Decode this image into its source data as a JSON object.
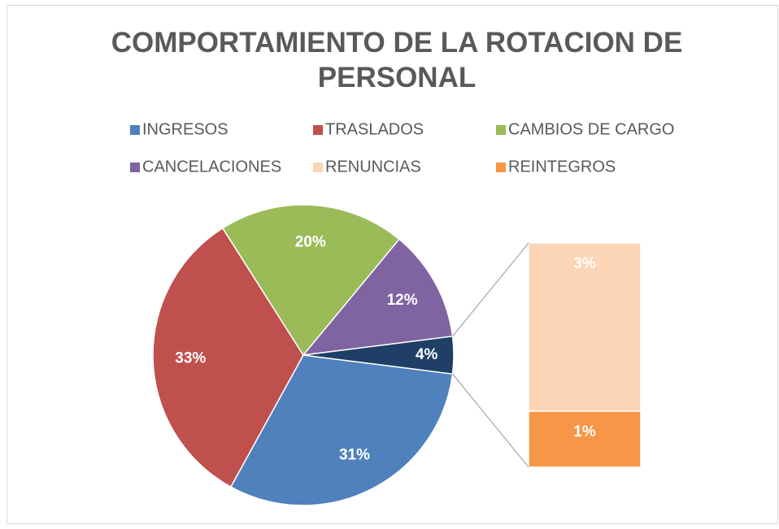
{
  "chart_data": {
    "type": "pie-of-bar",
    "title": "COMPORTAMIENTO DE LA ROTACION DE PERSONAL",
    "categories": [
      "INGRESOS",
      "TRASLADOS",
      "CAMBIOS DE CARGO",
      "CANCELACIONES",
      "RENUNCIAS",
      "REINTEGROS"
    ],
    "values": [
      31,
      33,
      20,
      12,
      3,
      1
    ],
    "value_labels": [
      "31%",
      "33%",
      "20%",
      "12%",
      "3%",
      "1%"
    ],
    "colors": [
      "#4f81bd",
      "#c0504d",
      "#9bbb59",
      "#8064a2",
      "#fbd5b5",
      "#f79646"
    ],
    "split_last": 2,
    "other_value": 4,
    "other_value_label": "4%",
    "other_color": "#1f3f66",
    "legend": "top"
  }
}
